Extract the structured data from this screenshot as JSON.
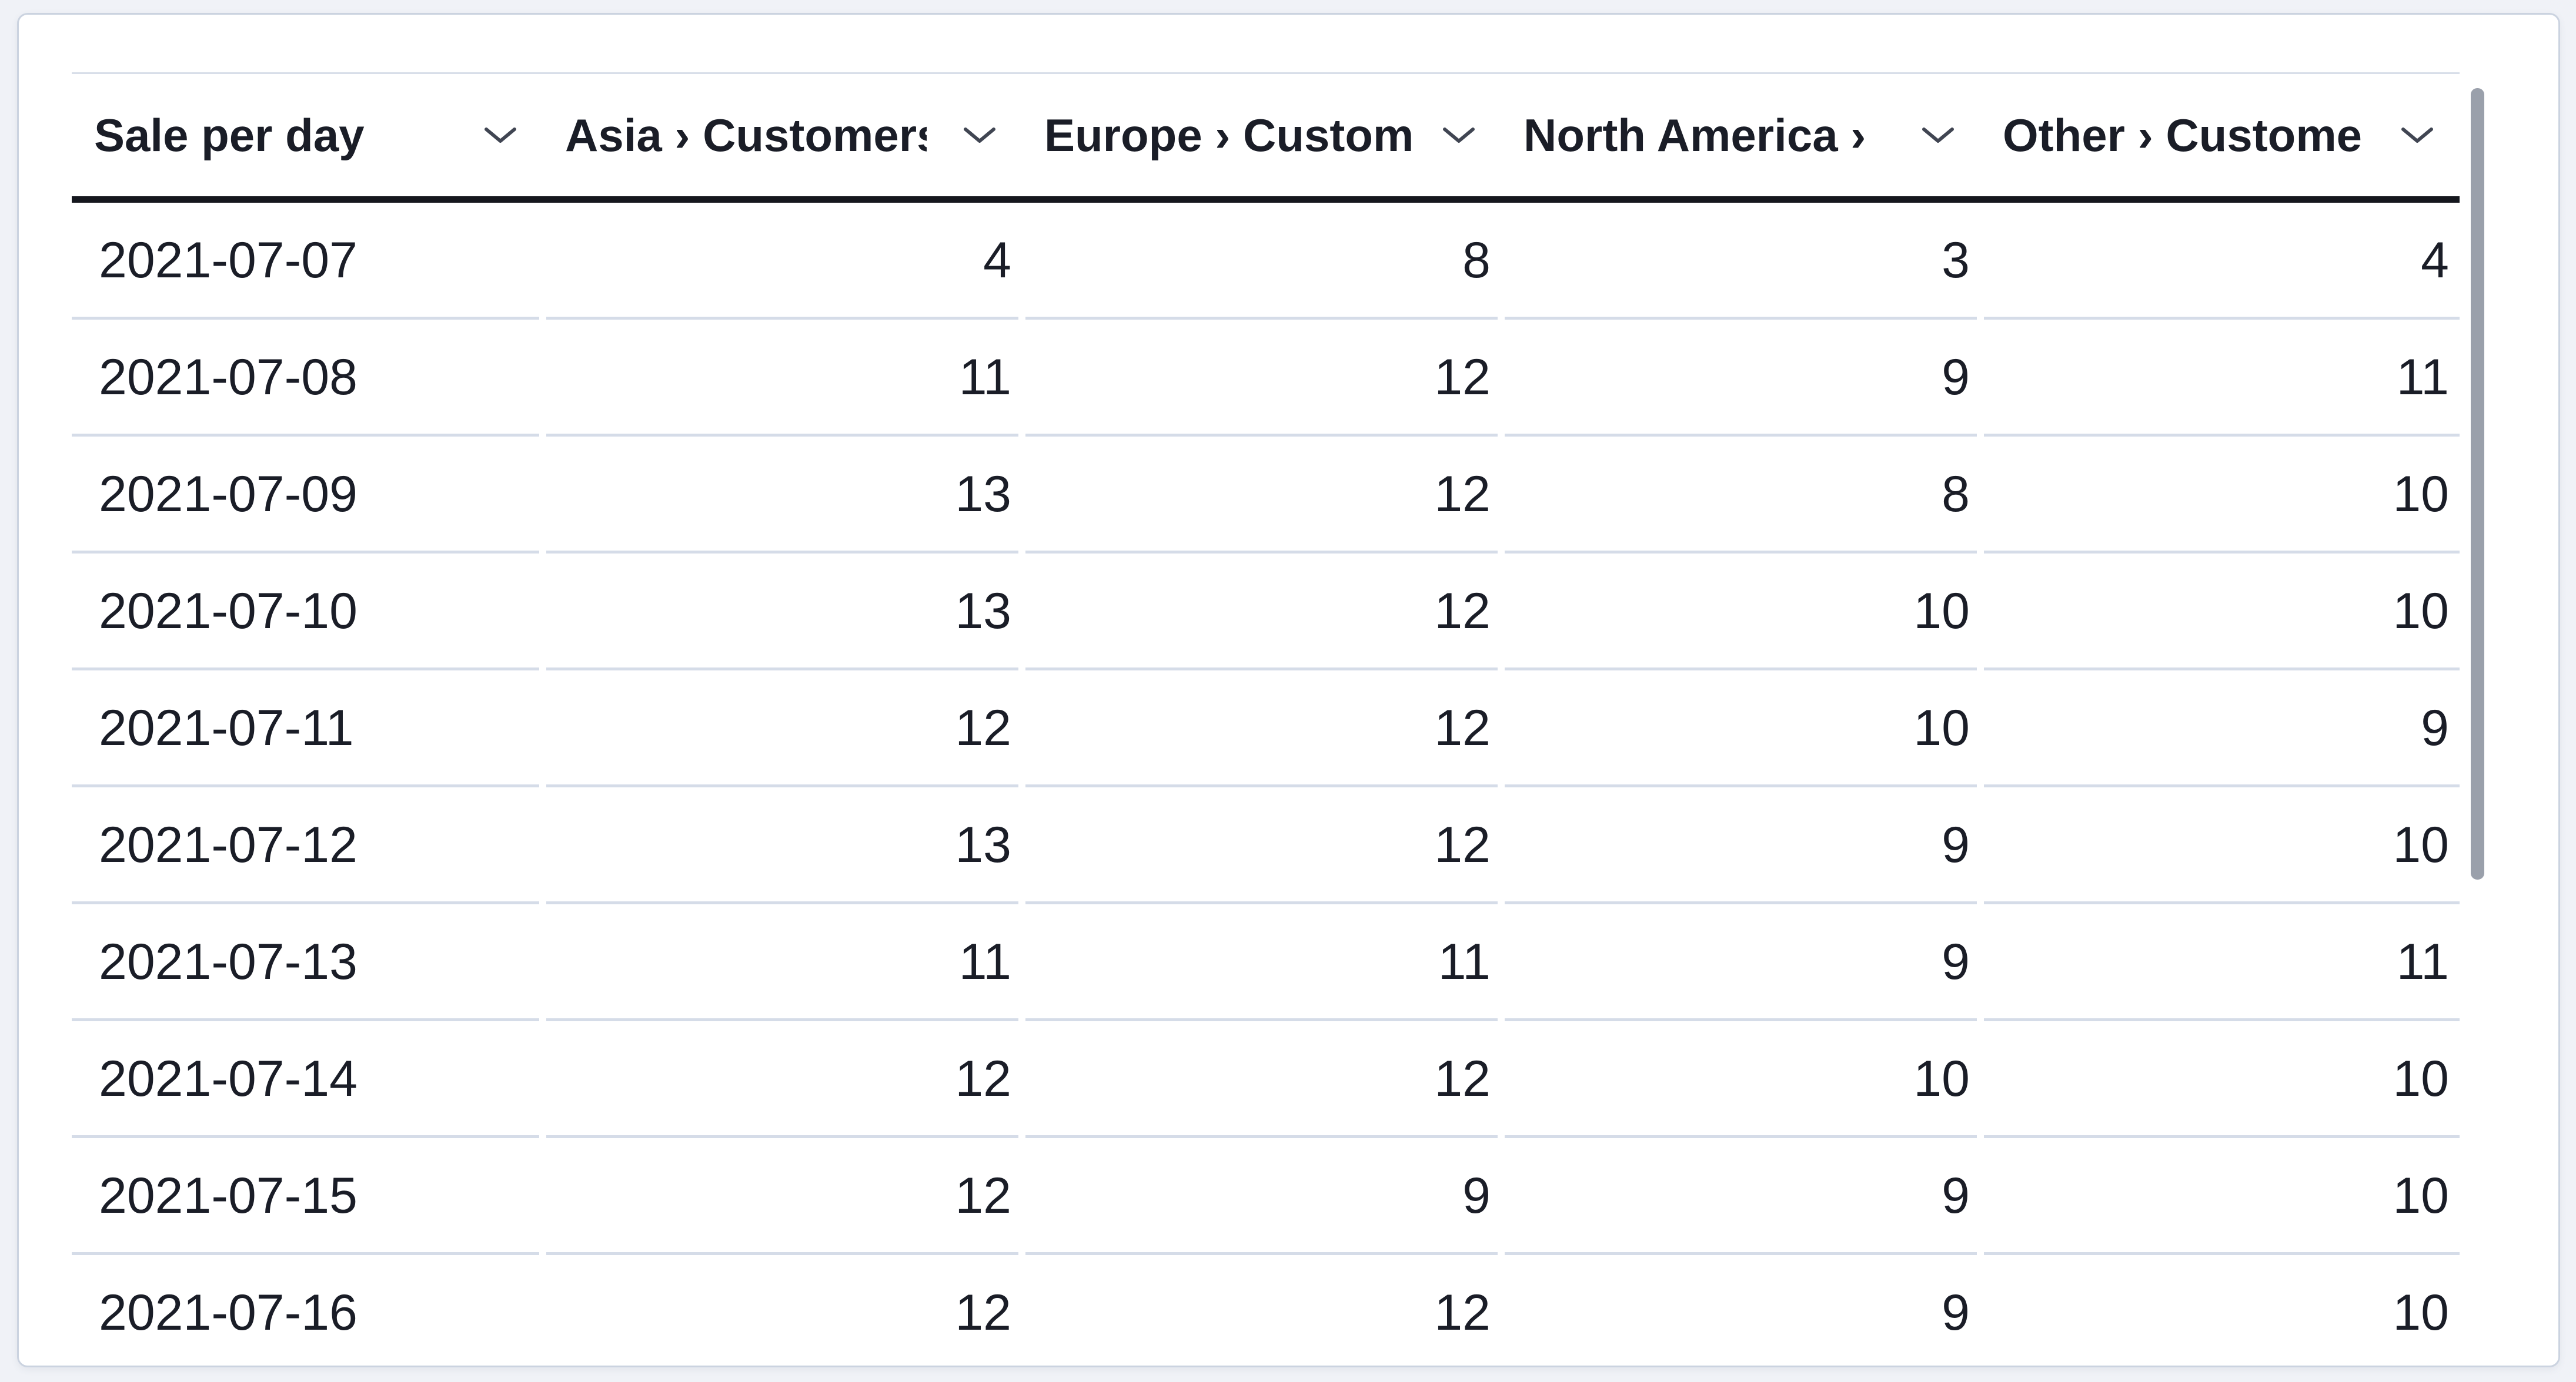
{
  "panel": {
    "type": "data-table"
  },
  "columns": [
    {
      "id": "date",
      "label": "Sale per day",
      "align": "left"
    },
    {
      "id": "asia",
      "label": "Asia › Customers",
      "align": "right"
    },
    {
      "id": "europe",
      "label": "Europe › Custom",
      "align": "right"
    },
    {
      "id": "north_america",
      "label": "North America ›",
      "align": "right"
    },
    {
      "id": "other",
      "label": "Other › Custome",
      "align": "right"
    }
  ],
  "rows": [
    {
      "date": "2021-07-07",
      "values": [
        4,
        8,
        3,
        4
      ]
    },
    {
      "date": "2021-07-08",
      "values": [
        11,
        12,
        9,
        11
      ]
    },
    {
      "date": "2021-07-09",
      "values": [
        13,
        12,
        8,
        10
      ]
    },
    {
      "date": "2021-07-10",
      "values": [
        13,
        12,
        10,
        10
      ]
    },
    {
      "date": "2021-07-11",
      "values": [
        12,
        12,
        10,
        9
      ]
    },
    {
      "date": "2021-07-12",
      "values": [
        13,
        12,
        9,
        10
      ]
    },
    {
      "date": "2021-07-13",
      "values": [
        11,
        11,
        9,
        11
      ]
    },
    {
      "date": "2021-07-14",
      "values": [
        12,
        12,
        10,
        10
      ]
    },
    {
      "date": "2021-07-15",
      "values": [
        12,
        9,
        9,
        10
      ]
    },
    {
      "date": "2021-07-16",
      "values": [
        12,
        12,
        9,
        10
      ]
    }
  ],
  "icons": {
    "column_menu": "chevron-down"
  },
  "scrollbar": {
    "orientation": "vertical",
    "position": "top"
  },
  "colors": {
    "page_bg": "#f0f2f7",
    "card_bg": "#ffffff",
    "card_border": "#cbd3e0",
    "grid_top": "#d8dee9",
    "head_underline": "#15171e",
    "row_sep": "#d5dce8",
    "text": "#1a1d27",
    "chev": "#404552",
    "thumb": "#9aa0ab"
  }
}
